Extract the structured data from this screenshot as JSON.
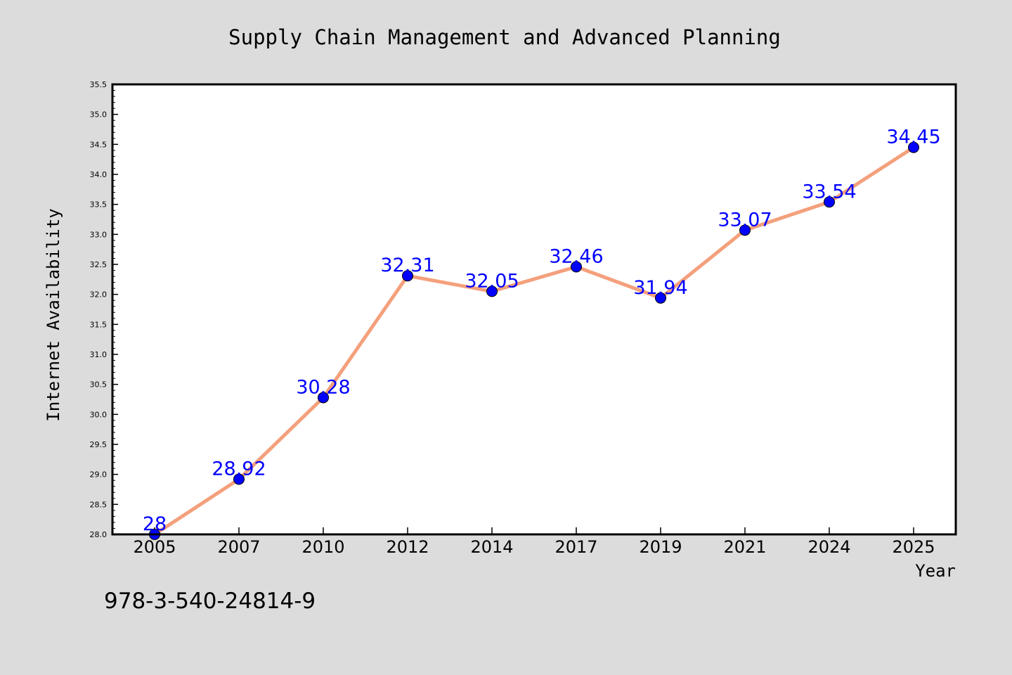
{
  "chart_data": {
    "type": "line",
    "title": "Supply Chain Management and Advanced Planning",
    "xlabel": "Year",
    "ylabel": "Internet Availability",
    "categories": [
      "2005",
      "2007",
      "2010",
      "2012",
      "2014",
      "2017",
      "2019",
      "2021",
      "2024",
      "2025"
    ],
    "series": [
      {
        "values": [
          28,
          28.92,
          30.28,
          32.31,
          32.05,
          32.46,
          31.94,
          33.07,
          33.54,
          34.45
        ],
        "labels": [
          "28",
          "28.92",
          "30.28",
          "32.31",
          "32.05",
          "32.46",
          "31.94",
          "33.07",
          "33.54",
          "34.45"
        ]
      }
    ],
    "ylim": [
      28.0,
      35.5
    ],
    "yticks": [
      "28.0",
      "28.5",
      "29.0",
      "29.5",
      "30.0",
      "30.5",
      "31.0",
      "31.5",
      "32.0",
      "32.5",
      "33.0",
      "33.5",
      "34.0",
      "34.5",
      "35.0",
      "35.5"
    ],
    "grid": false,
    "colors": {
      "line": "#f4a07c",
      "marker": "#0000ff",
      "label": "#0000ff",
      "background": "#dcdcdc",
      "plot_background": "#ffffff"
    }
  },
  "annotation": {
    "text": "978-3-540-24814-9"
  }
}
